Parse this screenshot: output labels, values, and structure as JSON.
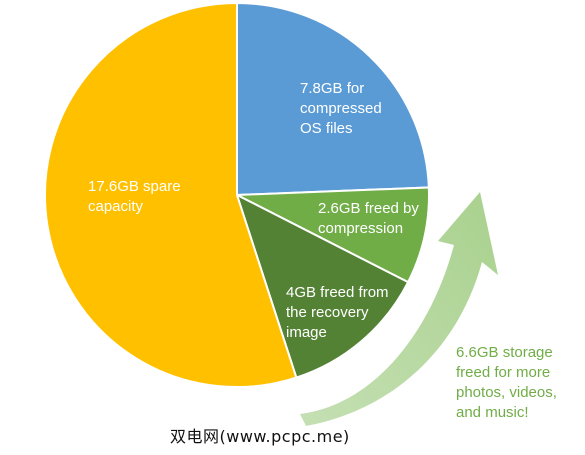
{
  "colors": {
    "compressed_os": "#5b9bd5",
    "freed_compression": "#70ad47",
    "freed_recovery": "#548235",
    "spare": "#ffc000",
    "arrow_light": "#a9d18e",
    "arrow_dark": "#c5e0b4",
    "annotation_text": "#70ad47",
    "divider": "#ffffff"
  },
  "chart_data": {
    "type": "pie",
    "unit": "GB",
    "title": "",
    "start_angle_deg": 0,
    "direction": "clockwise",
    "slices": [
      {
        "key": "compressed_os",
        "label": "7.8GB for compressed OS files",
        "value": 7.8
      },
      {
        "key": "freed_compression",
        "label": "2.6GB freed by compression",
        "value": 2.6
      },
      {
        "key": "freed_recovery",
        "label": "4GB freed from the recovery image",
        "value": 4.0
      },
      {
        "key": "spare",
        "label": "17.6GB spare capacity",
        "value": 17.6
      }
    ],
    "annotation": "6.6GB storage freed for more photos, videos, and music!"
  },
  "labels": {
    "compressed_os": "7.8GB for\ncompressed\nOS files",
    "freed_compression": "2.6GB freed by\ncompression",
    "freed_recovery": "4GB freed from\nthe recovery\nimage",
    "spare": "17.6GB spare\ncapacity",
    "annotation": "6.6GB storage\nfreed for more\nphotos, videos,\nand music!"
  },
  "watermark": "双电网(www.pcpc.me)"
}
